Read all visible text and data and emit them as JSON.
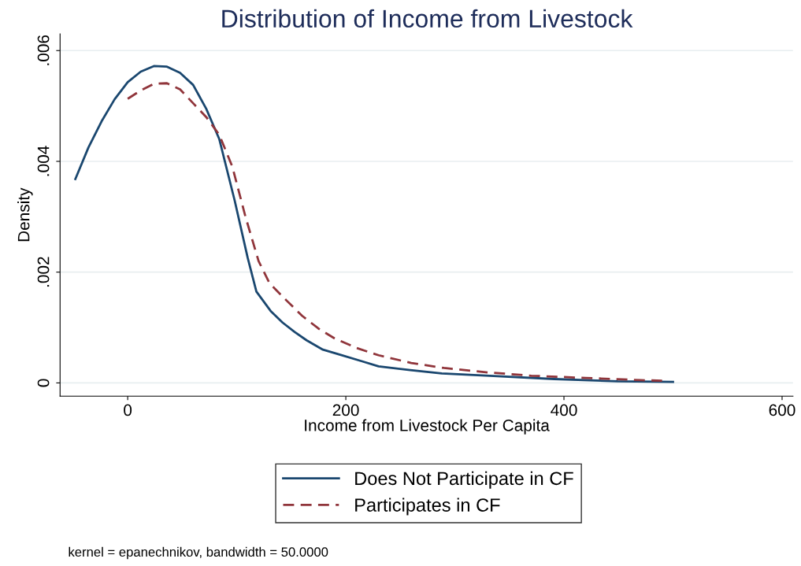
{
  "chart_data": {
    "type": "line",
    "title": "Distribution of Income from Livestock",
    "xlabel": "Income from Livestock Per Capita",
    "ylabel": "Density",
    "xlim": [
      -62,
      610
    ],
    "ylim": [
      -0.00024,
      0.0063
    ],
    "xticks": [
      0,
      200,
      400,
      600
    ],
    "yticks": [
      {
        "value": 0,
        "label": "0"
      },
      {
        "value": 0.002,
        "label": ".002"
      },
      {
        "value": 0.004,
        "label": ".004"
      },
      {
        "value": 0.006,
        "label": ".006"
      }
    ],
    "grid": "y",
    "legend": "bottom",
    "annotations": [
      "kernel = epanechnikov, bandwidth = 50.0000"
    ],
    "series": [
      {
        "name": "Does Not Participate in CF",
        "color": "#1a476f",
        "line_style": "solid",
        "x": [
          -48,
          -36,
          -24,
          -12,
          0,
          12,
          24,
          36,
          48,
          60,
          72,
          84,
          98,
          110,
          118,
          131,
          142,
          153,
          164,
          179,
          193,
          215,
          230,
          259,
          288,
          332,
          391,
          449,
          500
        ],
        "values": [
          0.00368,
          0.00425,
          0.00472,
          0.00512,
          0.00543,
          0.00562,
          0.00572,
          0.00571,
          0.0056,
          0.00538,
          0.00495,
          0.0044,
          0.0033,
          0.00226,
          0.00165,
          0.0013,
          0.00109,
          0.00092,
          0.00077,
          0.0006,
          0.00052,
          0.00039,
          0.0003,
          0.00023,
          0.00017,
          0.00013,
          7e-05,
          3e-05,
          2e-05
        ]
      },
      {
        "name": "Participates in CF",
        "color": "#90353b",
        "line_style": "dashed",
        "x": [
          0,
          12,
          24,
          36,
          48,
          60,
          72,
          84,
          96,
          108,
          120,
          130,
          145,
          160,
          175,
          190,
          210,
          230,
          260,
          290,
          330,
          370,
          420,
          470,
          490
        ],
        "values": [
          0.00513,
          0.00528,
          0.0054,
          0.00541,
          0.0053,
          0.00505,
          0.0048,
          0.00448,
          0.0039,
          0.003,
          0.0022,
          0.0018,
          0.0015,
          0.00121,
          0.00098,
          0.0008,
          0.00063,
          0.0005,
          0.00036,
          0.00027,
          0.00019,
          0.00013,
          9e-05,
          5e-05,
          4e-05
        ]
      }
    ]
  }
}
